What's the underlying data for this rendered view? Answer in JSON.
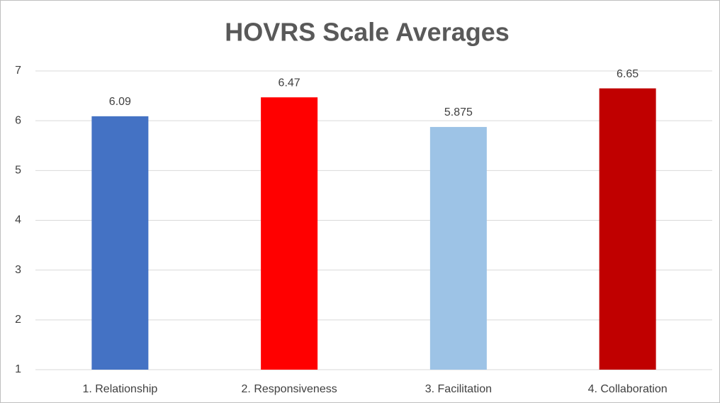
{
  "chart_data": {
    "type": "bar",
    "title": "HOVRS Scale Averages",
    "categories": [
      "1. Relationship",
      "2. Responsiveness",
      "3. Facilitation",
      "4. Collaboration"
    ],
    "values": [
      6.09,
      6.47,
      5.875,
      6.65
    ],
    "colors": [
      "#4472c4",
      "#ff0000",
      "#9dc3e6",
      "#c00000"
    ],
    "ylim": [
      1,
      7
    ],
    "yticks": [
      1,
      2,
      3,
      4,
      5,
      6,
      7
    ],
    "grid": true,
    "data_labels": true
  }
}
